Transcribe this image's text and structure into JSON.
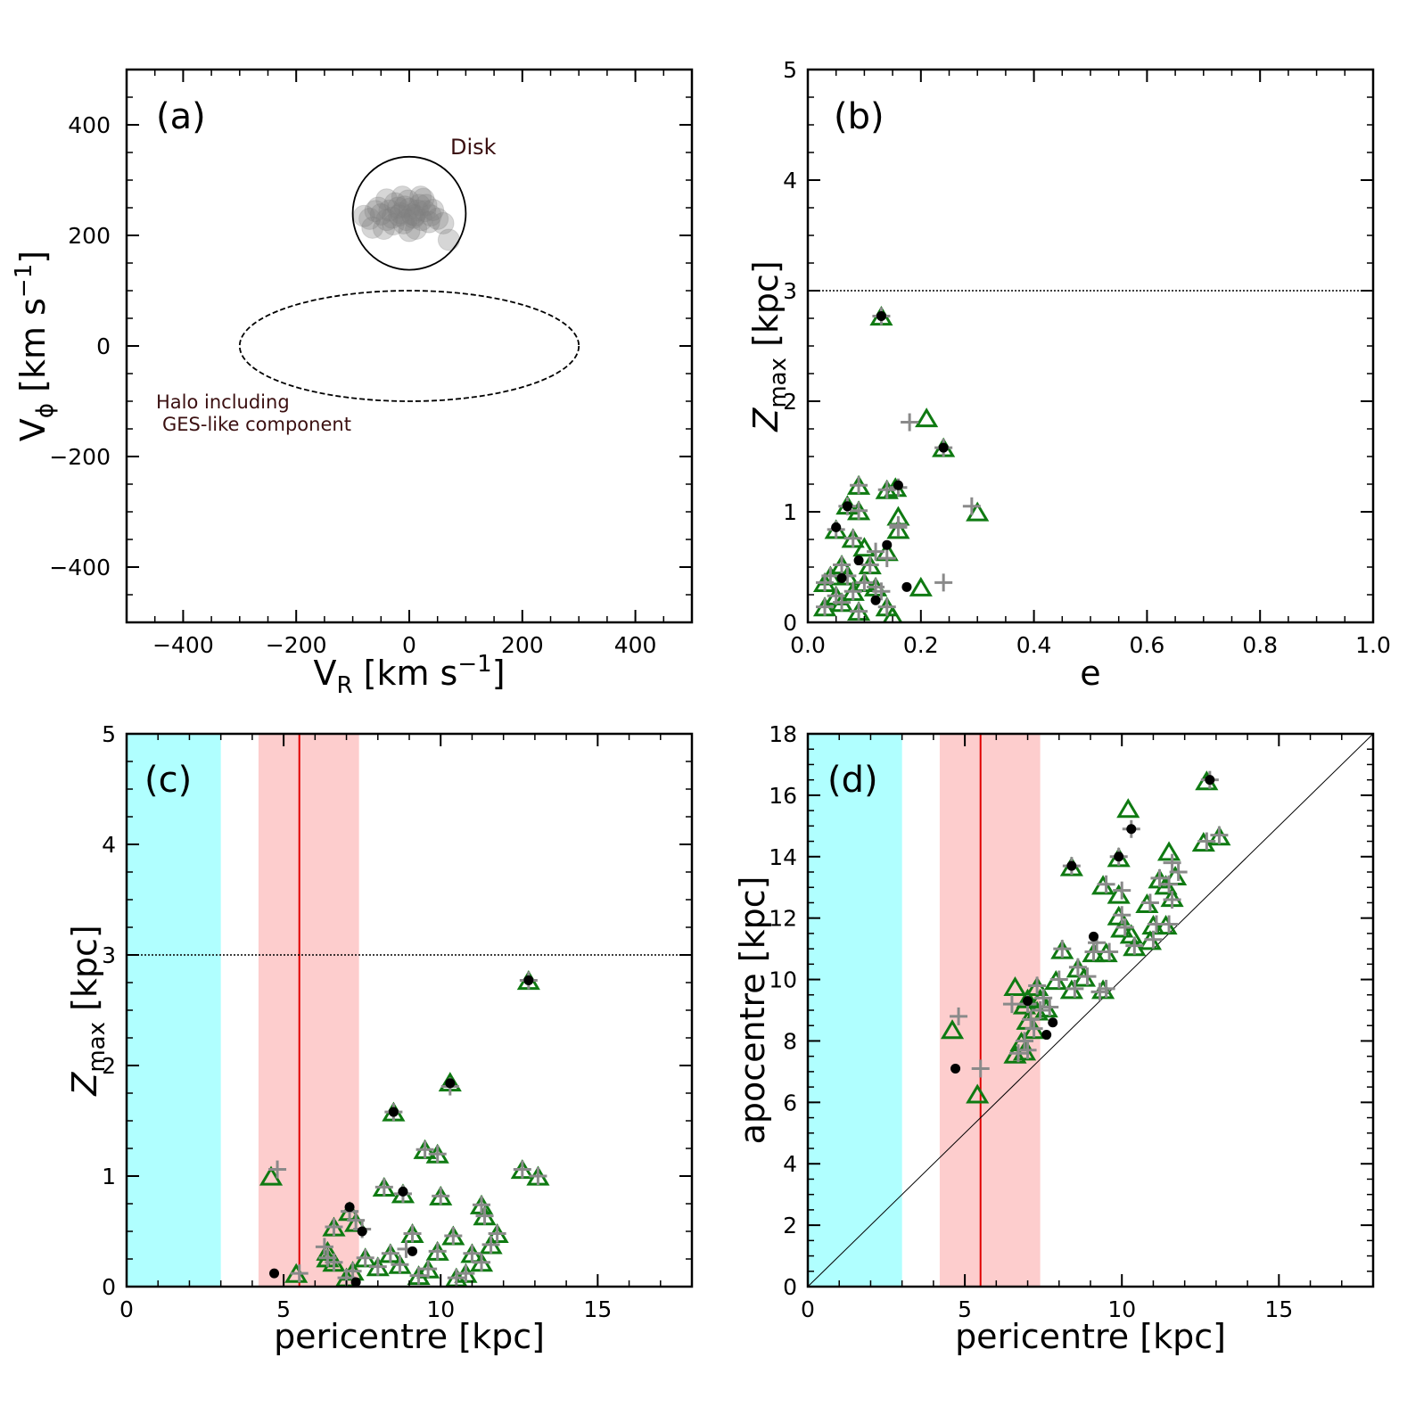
{
  "colors": {
    "disk_points": "#808080",
    "triangle": "#0f7a12",
    "plus": "#8a8a8a",
    "dot": "#000000",
    "cyan_band": "#b0ffff",
    "red_band": "#fdcdcd",
    "red_line": "#e00000"
  },
  "chart_data": [
    {
      "panel": "(a)",
      "type": "scatter",
      "xlabel": "V_R [km s^-1]",
      "ylabel": "V_phi [km s^-1]",
      "xlim": [
        -500,
        500
      ],
      "ylim": [
        -500,
        500
      ],
      "xticks": [
        -400,
        -200,
        0,
        200,
        400
      ],
      "yticks": [
        -400,
        -200,
        0,
        200,
        400
      ],
      "annotations": {
        "disk": "Disk",
        "halo_line1": "Halo including",
        "halo_line2": "GES-like component"
      },
      "disk_circle": {
        "center": [
          0,
          240
        ],
        "radius_vr": 100
      },
      "halo_ellipse": {
        "center": [
          0,
          0
        ],
        "half_width_vr": 300,
        "half_height_vphi": 100
      },
      "points": [
        [
          -70,
          230
        ],
        [
          -55,
          250
        ],
        [
          -40,
          265
        ],
        [
          -25,
          258
        ],
        [
          -15,
          240
        ],
        [
          -10,
          222
        ],
        [
          0,
          248
        ],
        [
          8,
          232
        ],
        [
          18,
          255
        ],
        [
          28,
          244
        ],
        [
          -30,
          232
        ],
        [
          -45,
          212
        ],
        [
          12,
          212
        ],
        [
          38,
          236
        ],
        [
          -2,
          263
        ],
        [
          22,
          228
        ],
        [
          -60,
          244
        ],
        [
          50,
          230
        ],
        [
          -20,
          250
        ],
        [
          5,
          238
        ],
        [
          -35,
          245
        ],
        [
          15,
          245
        ],
        [
          -5,
          228
        ],
        [
          30,
          255
        ],
        [
          -50,
          238
        ],
        [
          0,
          208
        ],
        [
          -12,
          270
        ],
        [
          25,
          266
        ],
        [
          -80,
          235
        ],
        [
          70,
          192
        ],
        [
          -28,
          220
        ],
        [
          42,
          246
        ],
        [
          -8,
          252
        ],
        [
          10,
          236
        ],
        [
          60,
          222
        ],
        [
          -65,
          214
        ],
        [
          20,
          270
        ],
        [
          -40,
          228
        ],
        [
          -18,
          236
        ],
        [
          35,
          224
        ]
      ]
    },
    {
      "panel": "(b)",
      "type": "scatter",
      "xlabel": "e",
      "ylabel": "Z_max [kpc]",
      "xlim": [
        0.0,
        1.0
      ],
      "ylim": [
        0,
        5
      ],
      "xticks": [
        "0.0",
        "0.2",
        "0.4",
        "0.6",
        "0.8",
        "1.0"
      ],
      "yticks": [
        "0",
        "1",
        "2",
        "3",
        "4",
        "5"
      ],
      "hline": 3.0,
      "triangles": [
        [
          0.13,
          2.75
        ],
        [
          0.21,
          1.83
        ],
        [
          0.24,
          1.56
        ],
        [
          0.09,
          1.22
        ],
        [
          0.14,
          1.18
        ],
        [
          0.155,
          1.2
        ],
        [
          0.07,
          1.04
        ],
        [
          0.09,
          0.99
        ],
        [
          0.3,
          0.98
        ],
        [
          0.05,
          0.82
        ],
        [
          0.16,
          0.82
        ],
        [
          0.16,
          0.94
        ],
        [
          0.08,
          0.74
        ],
        [
          0.1,
          0.66
        ],
        [
          0.14,
          0.62
        ],
        [
          0.2,
          0.3
        ],
        [
          0.06,
          0.5
        ],
        [
          0.07,
          0.4
        ],
        [
          0.04,
          0.4
        ],
        [
          0.1,
          0.34
        ],
        [
          0.12,
          0.3
        ],
        [
          0.03,
          0.34
        ],
        [
          0.08,
          0.26
        ],
        [
          0.05,
          0.22
        ],
        [
          0.06,
          0.16
        ],
        [
          0.14,
          0.12
        ],
        [
          0.09,
          0.08
        ],
        [
          0.03,
          0.12
        ],
        [
          0.11,
          0.5
        ],
        [
          0.15,
          0.04
        ]
      ],
      "plus": [
        [
          0.13,
          2.77
        ],
        [
          0.18,
          1.81
        ],
        [
          0.24,
          1.58
        ],
        [
          0.09,
          1.24
        ],
        [
          0.14,
          1.2
        ],
        [
          0.16,
          1.22
        ],
        [
          0.07,
          1.05
        ],
        [
          0.09,
          1.01
        ],
        [
          0.29,
          1.05
        ],
        [
          0.05,
          0.84
        ],
        [
          0.16,
          0.86
        ],
        [
          0.16,
          0.88
        ],
        [
          0.08,
          0.76
        ],
        [
          0.12,
          0.64
        ],
        [
          0.14,
          0.58
        ],
        [
          0.24,
          0.36
        ],
        [
          0.06,
          0.52
        ],
        [
          0.07,
          0.42
        ],
        [
          0.04,
          0.42
        ],
        [
          0.1,
          0.36
        ],
        [
          0.12,
          0.32
        ],
        [
          0.03,
          0.36
        ],
        [
          0.08,
          0.28
        ],
        [
          0.05,
          0.24
        ],
        [
          0.06,
          0.18
        ],
        [
          0.14,
          0.14
        ],
        [
          0.09,
          0.1
        ],
        [
          0.03,
          0.14
        ],
        [
          0.11,
          0.52
        ],
        [
          0.13,
          0.28
        ]
      ],
      "dots": [
        [
          0.13,
          2.77
        ],
        [
          0.16,
          1.24
        ],
        [
          0.07,
          1.05
        ],
        [
          0.14,
          0.7
        ],
        [
          0.09,
          0.56
        ],
        [
          0.175,
          0.32
        ],
        [
          0.05,
          0.86
        ],
        [
          0.24,
          1.58
        ],
        [
          0.06,
          0.4
        ],
        [
          0.12,
          0.2
        ]
      ]
    },
    {
      "panel": "(c)",
      "type": "scatter",
      "xlabel": "pericentre [kpc]",
      "ylabel": "Z_max [kpc]",
      "xlim": [
        0,
        18
      ],
      "ylim": [
        0,
        5
      ],
      "xticks": [
        "0",
        "5",
        "10",
        "15"
      ],
      "yticks": [
        "0",
        "1",
        "2",
        "3",
        "4",
        "5"
      ],
      "hline": 3.0,
      "cyan_band": [
        0,
        3
      ],
      "red_band": [
        4.2,
        7.4
      ],
      "red_line": 5.5,
      "triangles": [
        [
          12.8,
          2.75
        ],
        [
          10.3,
          1.83
        ],
        [
          8.5,
          1.56
        ],
        [
          9.5,
          1.22
        ],
        [
          9.9,
          1.18
        ],
        [
          12.6,
          1.04
        ],
        [
          13.1,
          0.98
        ],
        [
          4.6,
          0.98
        ],
        [
          8.2,
          0.88
        ],
        [
          8.8,
          0.82
        ],
        [
          10.0,
          0.8
        ],
        [
          11.3,
          0.72
        ],
        [
          11.4,
          0.62
        ],
        [
          6.6,
          0.52
        ],
        [
          7.1,
          0.66
        ],
        [
          7.3,
          0.56
        ],
        [
          9.1,
          0.46
        ],
        [
          10.4,
          0.44
        ],
        [
          11.8,
          0.46
        ],
        [
          6.4,
          0.3
        ],
        [
          8.4,
          0.28
        ],
        [
          9.9,
          0.3
        ],
        [
          11.0,
          0.28
        ],
        [
          5.4,
          0.1
        ],
        [
          6.6,
          0.2
        ],
        [
          7.6,
          0.24
        ],
        [
          8.7,
          0.18
        ],
        [
          9.3,
          0.08
        ],
        [
          10.8,
          0.1
        ],
        [
          7.0,
          0.06
        ],
        [
          6.4,
          0.24
        ],
        [
          7.2,
          0.12
        ],
        [
          8.0,
          0.16
        ],
        [
          9.6,
          0.14
        ],
        [
          10.5,
          0.06
        ],
        [
          11.6,
          0.36
        ],
        [
          11.3,
          0.2
        ]
      ],
      "plus": [
        [
          12.8,
          2.77
        ],
        [
          10.3,
          1.81
        ],
        [
          8.5,
          1.58
        ],
        [
          9.5,
          1.24
        ],
        [
          9.9,
          1.2
        ],
        [
          12.6,
          1.06
        ],
        [
          13.1,
          1.0
        ],
        [
          4.8,
          1.06
        ],
        [
          8.2,
          0.9
        ],
        [
          8.8,
          0.84
        ],
        [
          10.0,
          0.82
        ],
        [
          11.3,
          0.74
        ],
        [
          11.4,
          0.64
        ],
        [
          6.6,
          0.54
        ],
        [
          7.1,
          0.68
        ],
        [
          7.3,
          0.6
        ],
        [
          9.1,
          0.48
        ],
        [
          10.4,
          0.46
        ],
        [
          11.8,
          0.48
        ],
        [
          6.3,
          0.36
        ],
        [
          8.4,
          0.3
        ],
        [
          9.9,
          0.32
        ],
        [
          11.0,
          0.3
        ],
        [
          5.5,
          0.12
        ],
        [
          6.6,
          0.22
        ],
        [
          7.6,
          0.26
        ],
        [
          8.7,
          0.2
        ],
        [
          9.3,
          0.1
        ],
        [
          10.8,
          0.12
        ],
        [
          7.0,
          0.08
        ],
        [
          6.4,
          0.26
        ],
        [
          7.2,
          0.14
        ],
        [
          8.0,
          0.18
        ],
        [
          9.6,
          0.16
        ],
        [
          10.5,
          0.08
        ],
        [
          11.6,
          0.38
        ],
        [
          11.3,
          0.22
        ],
        [
          7.5,
          0.52
        ],
        [
          8.9,
          0.34
        ]
      ],
      "dots": [
        [
          4.7,
          0.12
        ],
        [
          12.8,
          2.77
        ],
        [
          7.1,
          0.72
        ],
        [
          7.5,
          0.5
        ],
        [
          8.8,
          0.86
        ],
        [
          9.1,
          0.32
        ],
        [
          7.3,
          0.04
        ],
        [
          10.3,
          1.84
        ],
        [
          8.5,
          1.58
        ]
      ]
    },
    {
      "panel": "(d)",
      "type": "scatter",
      "xlabel": "pericentre [kpc]",
      "ylabel": "apocentre [kpc]",
      "xlim": [
        0,
        18
      ],
      "ylim": [
        0,
        18
      ],
      "xticks": [
        "0",
        "5",
        "10",
        "15"
      ],
      "yticks": [
        "0",
        "2",
        "4",
        "6",
        "8",
        "10",
        "12",
        "14",
        "16",
        "18"
      ],
      "cyan_band": [
        0,
        3
      ],
      "red_band": [
        4.2,
        7.4
      ],
      "red_line": 5.5,
      "diagonal": true,
      "triangles": [
        [
          12.7,
          16.4
        ],
        [
          10.2,
          15.5
        ],
        [
          13.1,
          14.6
        ],
        [
          12.6,
          14.4
        ],
        [
          11.5,
          14.1
        ],
        [
          8.4,
          13.6
        ],
        [
          9.9,
          13.9
        ],
        [
          9.4,
          13.0
        ],
        [
          9.9,
          12.7
        ],
        [
          11.2,
          13.2
        ],
        [
          11.4,
          13.0
        ],
        [
          11.7,
          13.3
        ],
        [
          10.8,
          12.4
        ],
        [
          11.6,
          12.6
        ],
        [
          9.9,
          12.0
        ],
        [
          10.0,
          11.6
        ],
        [
          11.0,
          11.7
        ],
        [
          11.4,
          11.7
        ],
        [
          10.4,
          11.0
        ],
        [
          10.9,
          11.2
        ],
        [
          8.1,
          10.9
        ],
        [
          9.1,
          10.8
        ],
        [
          9.5,
          10.8
        ],
        [
          8.6,
          10.3
        ],
        [
          8.8,
          10.0
        ],
        [
          7.9,
          9.9
        ],
        [
          8.4,
          9.6
        ],
        [
          9.4,
          9.6
        ],
        [
          6.6,
          9.7
        ],
        [
          7.3,
          9.7
        ],
        [
          7.4,
          9.3
        ],
        [
          6.9,
          9.1
        ],
        [
          7.3,
          8.9
        ],
        [
          7.6,
          9.0
        ],
        [
          7.0,
          8.6
        ],
        [
          7.2,
          8.3
        ],
        [
          6.8,
          7.9
        ],
        [
          6.6,
          7.5
        ],
        [
          6.9,
          7.6
        ],
        [
          4.6,
          8.3
        ],
        [
          5.4,
          6.2
        ],
        [
          10.3,
          11.4
        ],
        [
          7.0,
          9.3
        ]
      ],
      "plus": [
        [
          12.8,
          16.5
        ],
        [
          10.3,
          14.9
        ],
        [
          13.1,
          14.7
        ],
        [
          12.7,
          14.5
        ],
        [
          11.6,
          13.8
        ],
        [
          8.4,
          13.7
        ],
        [
          9.9,
          14.0
        ],
        [
          9.5,
          13.1
        ],
        [
          10.0,
          12.9
        ],
        [
          11.2,
          13.3
        ],
        [
          11.5,
          13.1
        ],
        [
          11.8,
          13.5
        ],
        [
          10.9,
          12.5
        ],
        [
          11.6,
          12.6
        ],
        [
          10.0,
          12.1
        ],
        [
          10.1,
          11.7
        ],
        [
          11.1,
          11.8
        ],
        [
          11.5,
          11.8
        ],
        [
          10.4,
          11.1
        ],
        [
          11.0,
          11.3
        ],
        [
          8.1,
          11.0
        ],
        [
          9.1,
          10.9
        ],
        [
          9.6,
          10.9
        ],
        [
          8.6,
          10.4
        ],
        [
          8.9,
          10.1
        ],
        [
          8.0,
          10.0
        ],
        [
          8.5,
          9.7
        ],
        [
          9.5,
          9.7
        ],
        [
          6.5,
          9.2
        ],
        [
          7.3,
          9.8
        ],
        [
          7.5,
          9.4
        ],
        [
          7.0,
          9.2
        ],
        [
          7.4,
          9.0
        ],
        [
          7.7,
          9.1
        ],
        [
          7.1,
          8.7
        ],
        [
          7.2,
          8.4
        ],
        [
          6.9,
          8.0
        ],
        [
          6.7,
          7.6
        ],
        [
          7.0,
          7.7
        ],
        [
          4.8,
          8.8
        ],
        [
          5.5,
          7.1
        ],
        [
          9.2,
          11.2
        ],
        [
          9.3,
          9.6
        ]
      ],
      "dots": [
        [
          4.7,
          7.1
        ],
        [
          7.6,
          8.2
        ],
        [
          7.8,
          8.6
        ],
        [
          9.1,
          11.4
        ],
        [
          10.3,
          14.9
        ],
        [
          12.8,
          16.5
        ],
        [
          8.4,
          13.7
        ],
        [
          9.9,
          14.0
        ],
        [
          7.0,
          9.3
        ]
      ]
    }
  ]
}
